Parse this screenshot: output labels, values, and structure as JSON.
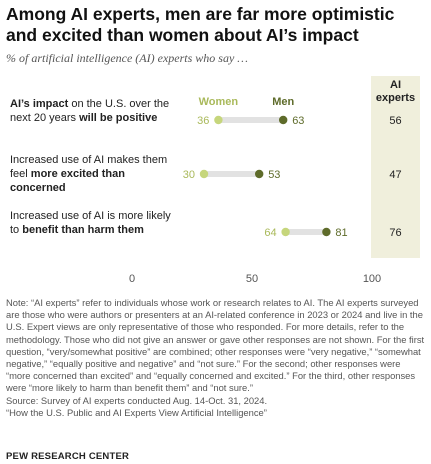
{
  "title": "Among AI experts, men are far more optimistic and excited than women about AI’s impact",
  "subtitle": "% of artificial intelligence (AI) experts who say …",
  "chart_data": {
    "type": "dot",
    "categories": [
      "AI’s impact on the U.S. over the next 20 years will be positive",
      "Increased use of AI makes them feel more excited than concerned",
      "Increased use of AI is more likely to benefit than harm them"
    ],
    "series": [
      {
        "name": "Women",
        "values": [
          36,
          30,
          64
        ],
        "color": "#c6d67c"
      },
      {
        "name": "Men",
        "values": [
          63,
          53,
          81
        ],
        "color": "#5e6b2a"
      }
    ],
    "extra_column": {
      "name": "AI experts",
      "values": [
        56,
        47,
        76
      ]
    },
    "xlim": [
      0,
      100
    ],
    "xticks": [
      0,
      50,
      100
    ]
  },
  "rows": [
    {
      "pre": "",
      "bold1": "AI’s impact",
      "mid": " on the U.S. over the next 20 years ",
      "bold2": "will be positive"
    },
    {
      "pre": "Increased use of AI makes them feel ",
      "bold1": "more excited than concerned",
      "mid": "",
      "bold2": ""
    },
    {
      "pre": "Increased use of AI is more likely to ",
      "bold1": "benefit than harm them",
      "mid": "",
      "bold2": ""
    }
  ],
  "notes": {
    "note": "Note: “AI experts” refer to individuals whose work or research relates to AI. The AI experts surveyed are those who were authors or presenters at an AI-related conference in 2023 or 2024 and live in the U.S. Expert views are only representative of those who responded. For more details, refer to the methodology. Those who did not give an answer or gave other responses are not shown. For the first question, “very/somewhat positive” are combined; other responses were “very negative,” “somewhat negative,” “equally positive and negative” and “not sure.” For the second; other responses were “more concerned than excited” and “equally concerned and excited.” For the third, other responses were “more likely to harm than benefit them” and “not sure.”",
    "source": "Source: Survey of AI experts conducted Aug. 14-Oct. 31, 2024.",
    "report": "“How the U.S. Public and AI Experts View Artificial Intelligence”"
  },
  "brand": "PEW RESEARCH CENTER",
  "colors": {
    "women": "#c6d67c",
    "men": "#5e6b2a",
    "women_label": "#a9b95a",
    "men_label": "#5e6b2a",
    "connector": "#e2e2e2",
    "expert_column_bg": "#f0efdc"
  }
}
